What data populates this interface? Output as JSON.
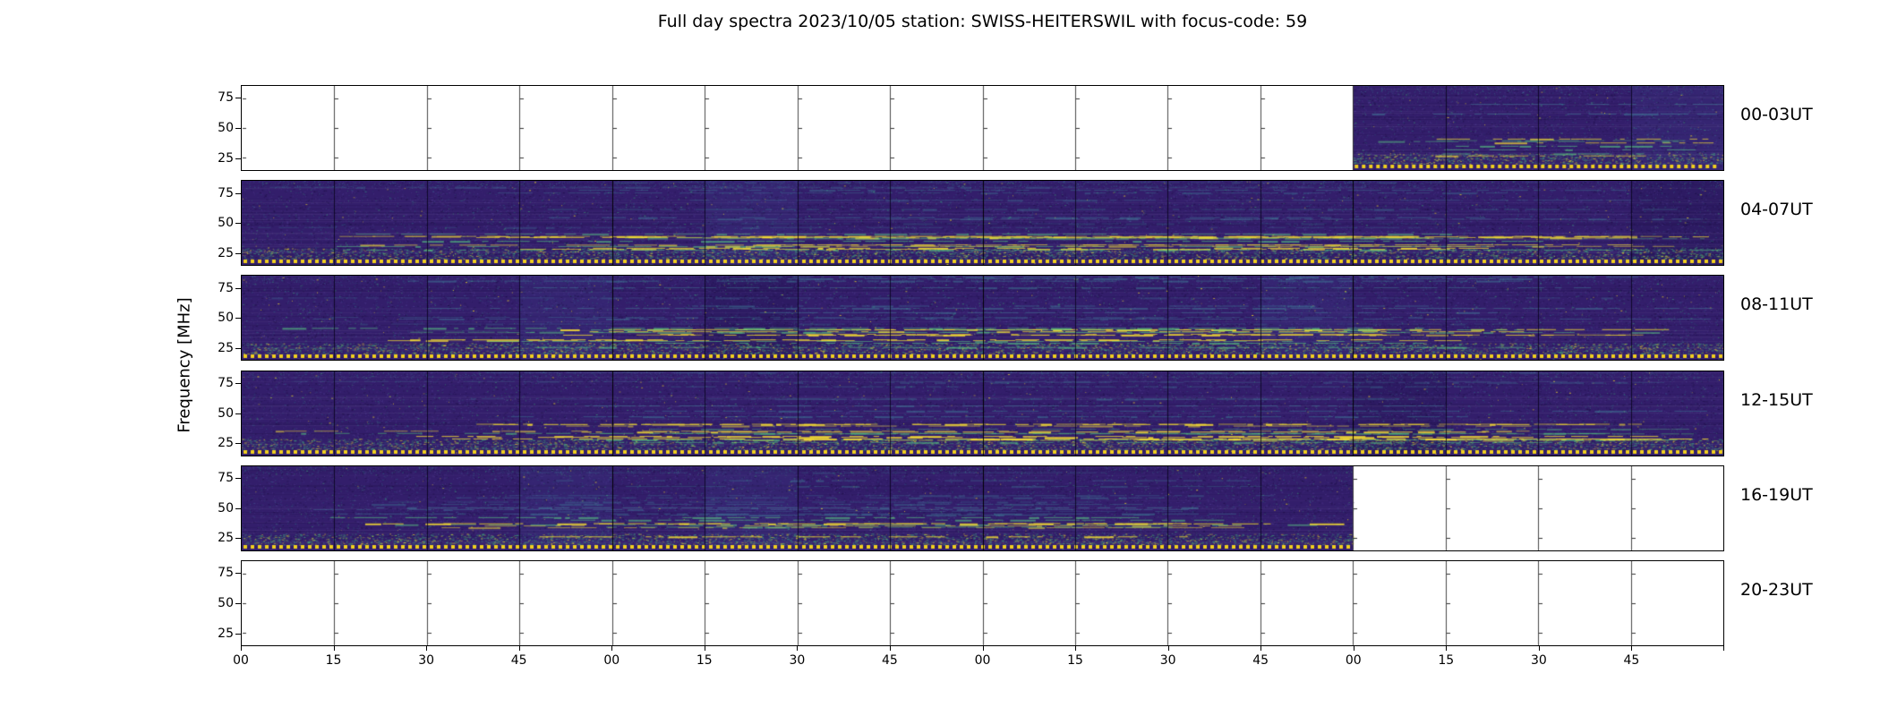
{
  "title": "Full day spectra 2023/10/05 station: SWISS-HEITERSWIL with focus-code: 59",
  "ylabel": "Frequency [MHz]",
  "chart_data": {
    "type": "heatmap",
    "subtype": "solar-radio-spectrogram-grid",
    "date": "2023/10/05",
    "station": "SWISS-HEITERSWIL",
    "focus_code": "59",
    "layout": {
      "rows_of_panels": 6,
      "hours_per_row": 4,
      "segments_per_row": 16,
      "minutes_per_segment": 15,
      "grid": "off",
      "empty_segments_rendered_white": true
    },
    "y_ticks": [
      "75",
      "50",
      "25"
    ],
    "y_tick_values_mhz": [
      75,
      50,
      25
    ],
    "x_tick_labels": [
      "00",
      "15",
      "30",
      "45",
      "00",
      "15",
      "30",
      "45",
      "00",
      "15",
      "30",
      "45",
      "00",
      "15",
      "30",
      "45"
    ],
    "rows": [
      {
        "label": "00-03UT",
        "data_from": 12,
        "data_to": 16
      },
      {
        "label": "04-07UT",
        "data_from": 0,
        "data_to": 16
      },
      {
        "label": "08-11UT",
        "data_from": 0,
        "data_to": 16
      },
      {
        "label": "12-15UT",
        "data_from": 0,
        "data_to": 16
      },
      {
        "label": "16-19UT",
        "data_from": 0,
        "data_to": 12
      },
      {
        "label": "20-23UT",
        "data_from": 0,
        "data_to": 0
      }
    ],
    "colors": {
      "background": "#ffffff",
      "frame": "#000000",
      "spectrogram_base": "#331e6b",
      "noise_purple_light": "#604ea8",
      "noise_dark": "#120832",
      "accent_teal": "#2d7d8e",
      "accent_green": "#3eb978",
      "accent_yellow": "#fde725",
      "dashed_strip": "#f0cf1e"
    }
  }
}
